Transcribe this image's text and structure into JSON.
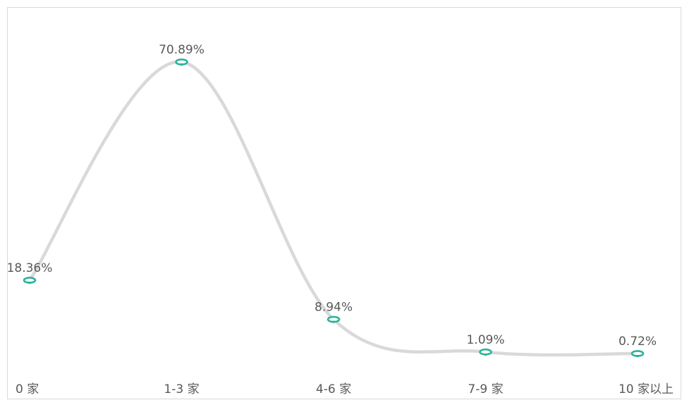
{
  "chart_data": {
    "type": "line",
    "smooth": true,
    "title": "",
    "xlabel": "",
    "ylabel": "",
    "categories": [
      "0 家",
      "1-3 家",
      "4-6 家",
      "7-9 家",
      "10 家以上"
    ],
    "series": [
      {
        "values": [
          18.36,
          70.89,
          8.94,
          1.09,
          0.72
        ],
        "data_labels": [
          "18.36%",
          "70.89%",
          "8.94%",
          "1.09%",
          "0.72%"
        ]
      }
    ],
    "ylim": [
      0,
      80
    ],
    "grid": false,
    "legend": "none",
    "colors": {
      "line": "#d9d9d9",
      "marker": "#2bb39a",
      "label_text": "#595959",
      "axis_text": "#595959",
      "frame": "#d9d9d9"
    }
  }
}
